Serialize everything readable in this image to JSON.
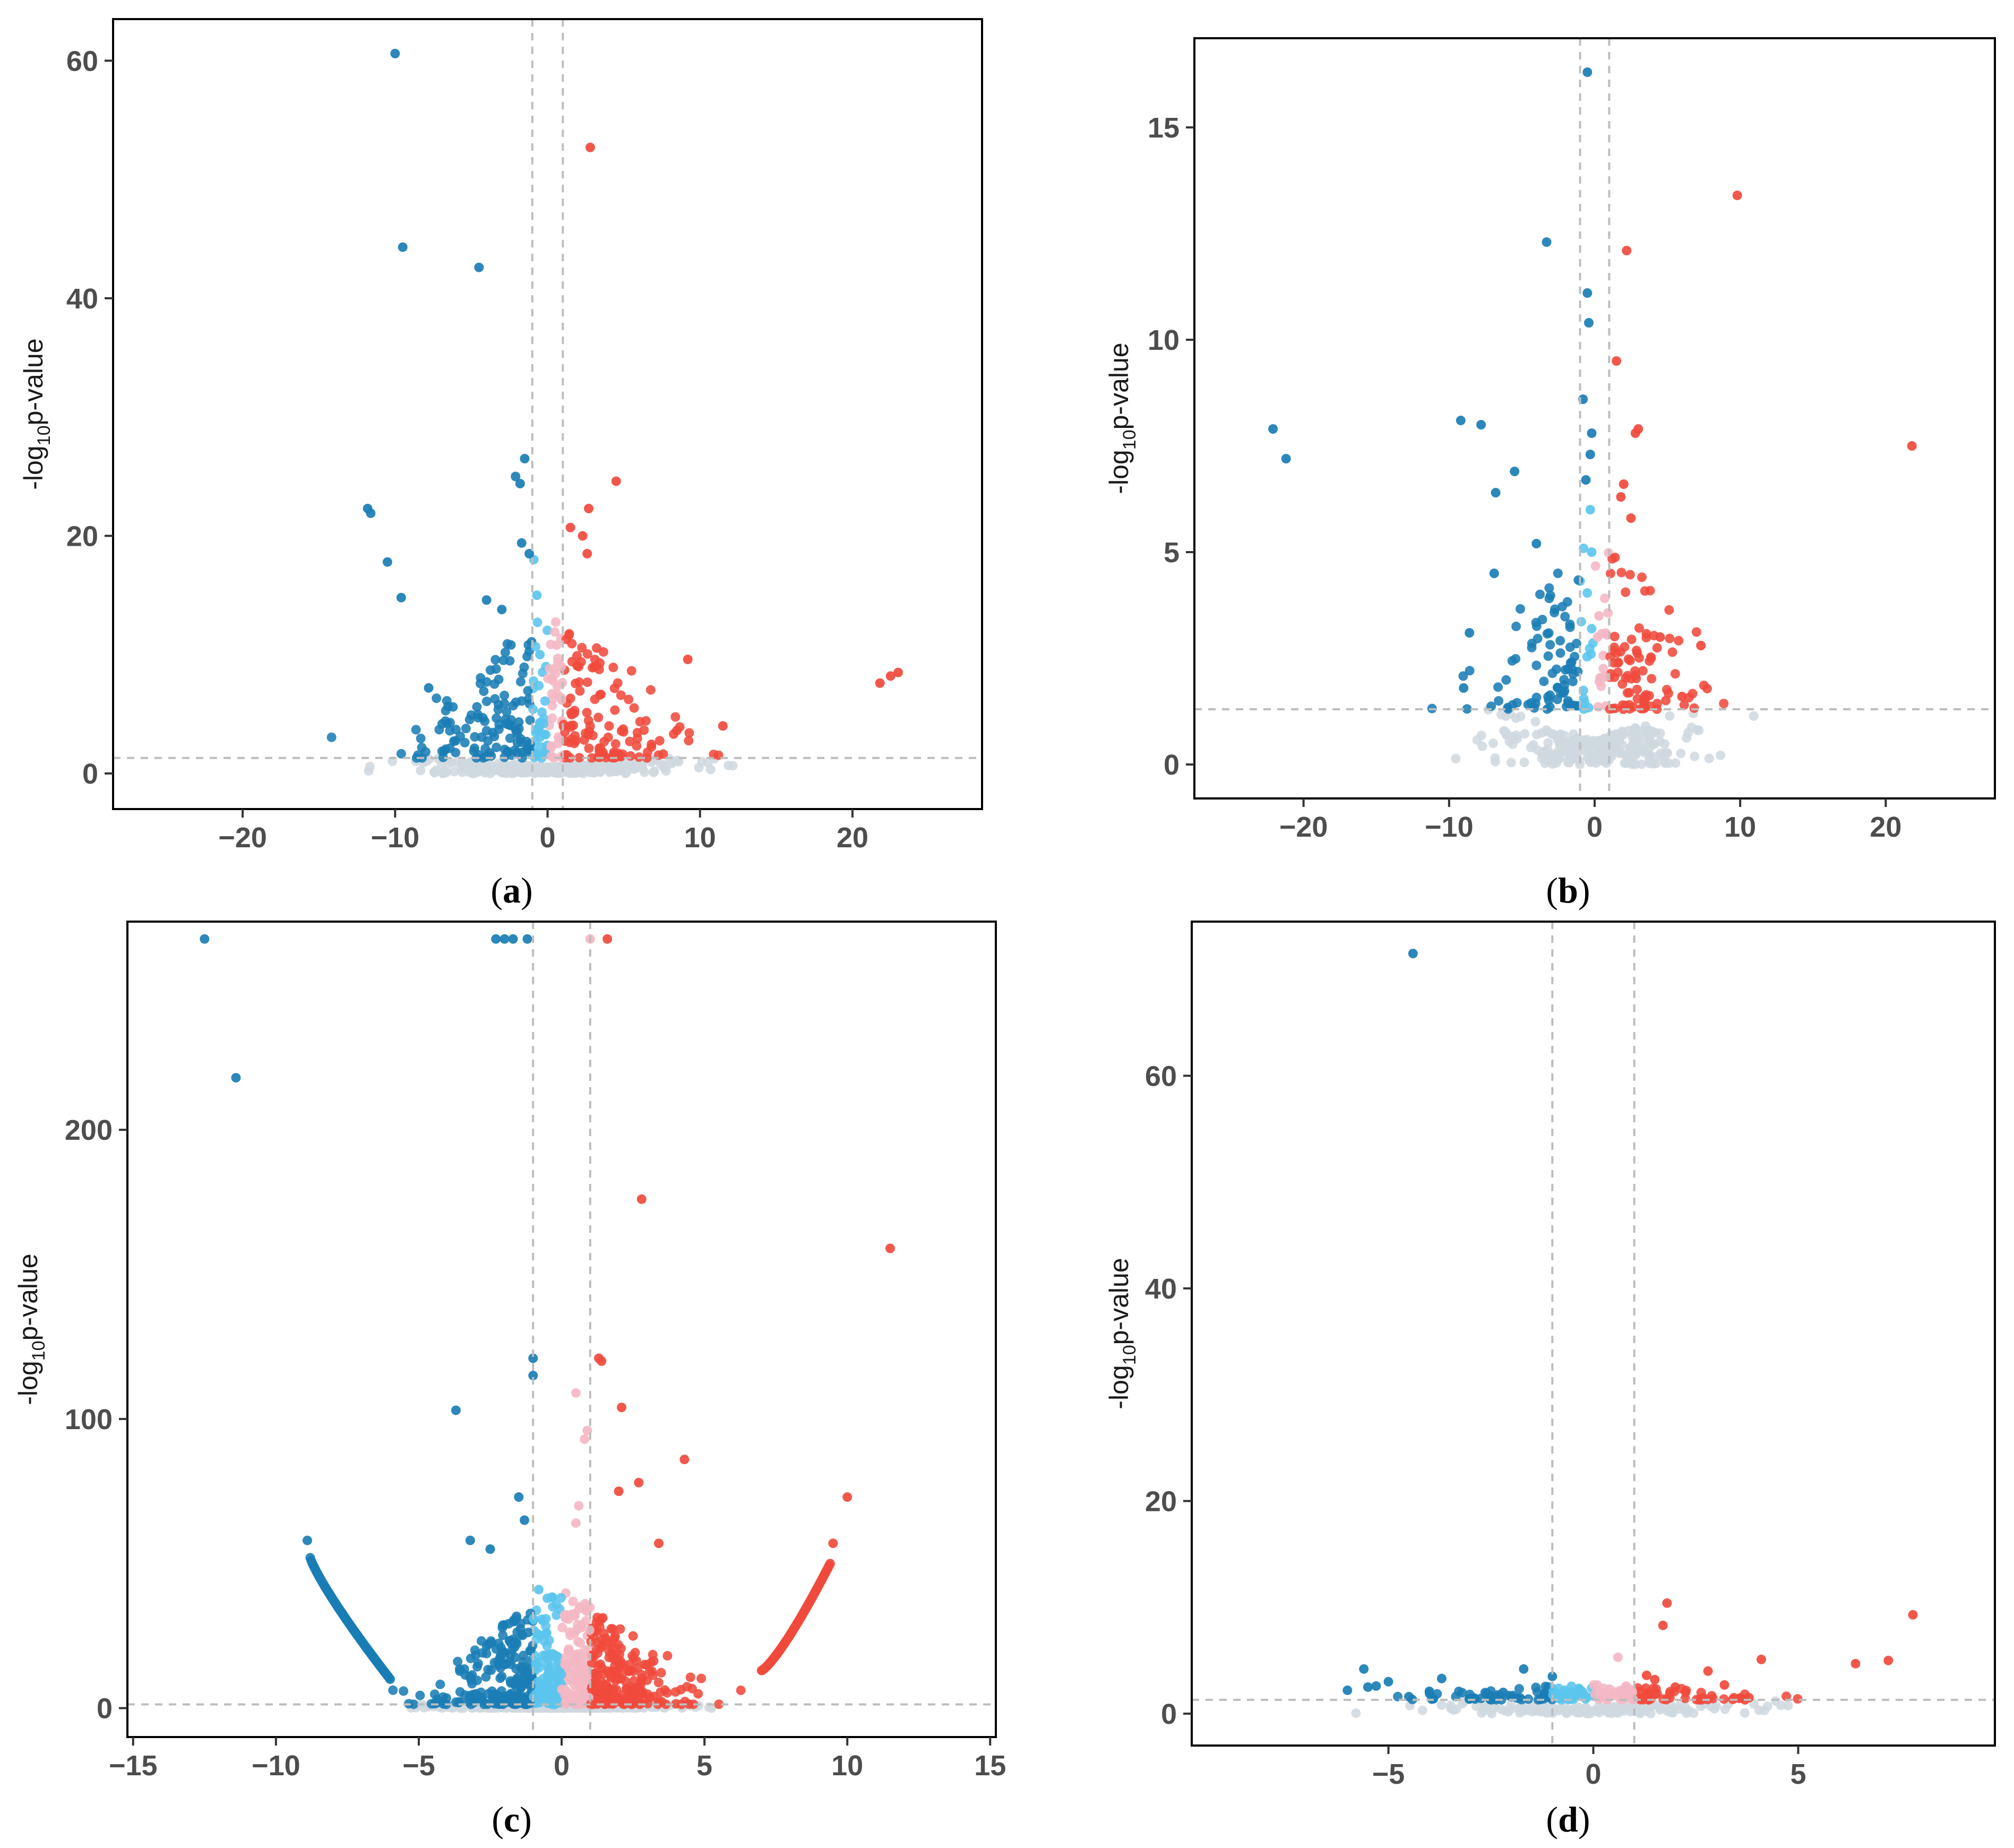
{
  "figure": {
    "colors": {
      "sig_down": "#1a7db5",
      "down": "#5bc5ee",
      "nonsig": "#cfd8df",
      "up": "#f4b7c4",
      "sig_up": "#f04a3c",
      "threshold": "#bdbdbd",
      "frame": "#000000"
    }
  },
  "chart_data": [
    {
      "id": "a",
      "type": "scatter",
      "label": "a",
      "ylabel_main": "-log",
      "ylabel_sub": "10",
      "ylabel_rest": "p-value",
      "xlabel": "",
      "xlim": [
        -28.5,
        28.5
      ],
      "ylim": [
        -3,
        63.5
      ],
      "xticks": [
        -20,
        -10,
        0,
        10,
        20
      ],
      "yticks": [
        0,
        20,
        40,
        60
      ],
      "fc_threshold": [
        -1,
        1
      ],
      "p_threshold": 1.3,
      "cloud": {
        "xspread": 9,
        "nonsig_ymax": 1.3,
        "sig_ymax": 12,
        "count": 700
      },
      "highlights": {
        "sig_down": [
          [
            -10,
            60.6
          ],
          [
            -9.5,
            44.3
          ],
          [
            -4.5,
            42.6
          ],
          [
            -11.8,
            22.3
          ],
          [
            -11.6,
            21.9
          ],
          [
            -10.5,
            17.8
          ],
          [
            -9.6,
            14.8
          ],
          [
            -1.5,
            26.5
          ],
          [
            -2.1,
            25.0
          ],
          [
            -1.8,
            24.4
          ],
          [
            -1.7,
            19.4
          ],
          [
            -1.2,
            18.5
          ],
          [
            -7.8,
            7.2
          ],
          [
            -4.0,
            14.6
          ],
          [
            -3.0,
            13.8
          ]
        ],
        "sig_up": [
          [
            2.8,
            52.7
          ],
          [
            4.5,
            24.6
          ],
          [
            2.7,
            22.3
          ],
          [
            1.5,
            20.7
          ],
          [
            2.3,
            20.0
          ],
          [
            2.6,
            18.5
          ],
          [
            9.2,
            9.6
          ],
          [
            11.5,
            4.0
          ],
          [
            21.8,
            7.6
          ],
          [
            22.5,
            8.2
          ],
          [
            23.0,
            8.5
          ]
        ],
        "down": [
          [
            -0.9,
            18.0
          ],
          [
            -0.7,
            15.0
          ],
          [
            -0.5,
            10.0
          ]
        ],
        "up": [
          [
            0.6,
            10.8
          ],
          [
            0.9,
            9.0
          ]
        ]
      }
    },
    {
      "id": "b",
      "type": "scatter",
      "label": "b",
      "ylabel_main": "-log",
      "ylabel_sub": "10",
      "ylabel_rest": "p-value",
      "xlabel": "",
      "xlim": [
        -27.5,
        27.5
      ],
      "ylim": [
        -0.8,
        17.1
      ],
      "xticks": [
        -20,
        -10,
        0,
        10,
        20
      ],
      "yticks": [
        0,
        5,
        10,
        15
      ],
      "fc_threshold": [
        -1,
        1
      ],
      "p_threshold": 1.3,
      "cloud": {
        "xspread": 8,
        "nonsig_ymax": 1.3,
        "sig_ymax": 4.2,
        "count": 450
      },
      "highlights": {
        "sig_down": [
          [
            -0.5,
            16.3
          ],
          [
            -3.3,
            12.3
          ],
          [
            -0.5,
            11.1
          ],
          [
            -0.4,
            10.4
          ],
          [
            -0.8,
            8.6
          ],
          [
            -22.1,
            7.9
          ],
          [
            -21.2,
            7.2
          ],
          [
            -9.2,
            8.1
          ],
          [
            -7.8,
            8.0
          ],
          [
            -5.5,
            6.9
          ],
          [
            -6.8,
            6.4
          ],
          [
            -6.9,
            4.5
          ],
          [
            -4.0,
            5.2
          ],
          [
            -0.2,
            7.8
          ],
          [
            -0.3,
            7.3
          ],
          [
            -0.6,
            6.7
          ],
          [
            -8.6,
            3.1
          ],
          [
            -9.0,
            1.8
          ]
        ],
        "sig_up": [
          [
            9.8,
            13.4
          ],
          [
            2.2,
            12.1
          ],
          [
            1.5,
            9.5
          ],
          [
            3.0,
            7.9
          ],
          [
            2.8,
            7.8
          ],
          [
            21.8,
            7.5
          ],
          [
            2.0,
            6.6
          ],
          [
            1.8,
            6.3
          ],
          [
            2.5,
            5.8
          ],
          [
            4.5,
            3.0
          ],
          [
            7.3,
            2.8
          ],
          [
            6.0,
            1.6
          ]
        ],
        "down": [
          [
            -0.3,
            6.0
          ],
          [
            -0.2,
            5.0
          ]
        ],
        "up": [
          [
            0.3,
            3.5
          ],
          [
            0.2,
            3.0
          ]
        ]
      }
    },
    {
      "id": "c",
      "type": "scatter",
      "label": "c",
      "ylabel_main": "-log",
      "ylabel_sub": "10",
      "ylabel_rest": "p-value",
      "xlabel": "",
      "xlim": [
        -15.2,
        15.2
      ],
      "ylim": [
        -10,
        272
      ],
      "xticks": [
        -15,
        -10,
        -5,
        0,
        5,
        10,
        15
      ],
      "yticks": [
        0,
        100,
        200
      ],
      "fc_threshold": [
        -1,
        1
      ],
      "p_threshold": 1.3,
      "cloud": {
        "xspread": 4.2,
        "nonsig_ymax": 1.3,
        "sig_ymax": 40,
        "count": 1400
      },
      "arcs": [
        {
          "group": "sig_down",
          "from": [
            -8.8,
            52
          ],
          "to": [
            -6.0,
            10
          ],
          "count": 80
        },
        {
          "group": "sig_up",
          "from": [
            7.0,
            13
          ],
          "to": [
            9.4,
            50
          ],
          "count": 80
        }
      ],
      "highlights": {
        "sig_down": [
          [
            -12.5,
            266
          ],
          [
            -11.4,
            218
          ],
          [
            -2.3,
            266
          ],
          [
            -2.0,
            266
          ],
          [
            -1.7,
            266
          ],
          [
            -1.2,
            266
          ],
          [
            -1.0,
            121
          ],
          [
            -1.0,
            115
          ],
          [
            -3.7,
            103
          ],
          [
            -1.5,
            73
          ],
          [
            -1.3,
            65
          ],
          [
            -8.9,
            58
          ],
          [
            -2.5,
            55
          ],
          [
            -3.2,
            58
          ]
        ],
        "sig_up": [
          [
            1.6,
            266
          ],
          [
            2.8,
            176
          ],
          [
            11.5,
            159
          ],
          [
            1.3,
            121
          ],
          [
            1.4,
            120
          ],
          [
            2.1,
            104
          ],
          [
            4.3,
            86
          ],
          [
            2.7,
            78
          ],
          [
            2.0,
            75
          ],
          [
            10.0,
            73
          ],
          [
            9.5,
            57
          ],
          [
            3.4,
            57
          ]
        ],
        "down": [
          [
            -0.8,
            41
          ],
          [
            -0.5,
            38
          ]
        ],
        "up": [
          [
            1.0,
            266
          ],
          [
            0.5,
            109
          ],
          [
            0.9,
            96
          ],
          [
            0.8,
            93
          ],
          [
            0.6,
            70
          ],
          [
            0.5,
            64
          ]
        ]
      }
    },
    {
      "id": "d",
      "type": "scatter",
      "label": "d",
      "ylabel_main": "-log",
      "ylabel_sub": "10",
      "ylabel_rest": "p-value",
      "xlabel": "",
      "xlim": [
        -9.8,
        9.8
      ],
      "ylim": [
        -3,
        74.5
      ],
      "xticks": [
        -5,
        0,
        5
      ],
      "yticks": [
        0,
        20,
        40,
        60
      ],
      "fc_threshold": [
        -1,
        1
      ],
      "p_threshold": 1.3,
      "cloud": {
        "xspread": 4.5,
        "nonsig_ymax": 1.3,
        "sig_ymax": 1.5,
        "count": 320
      },
      "highlights": {
        "sig_down": [
          [
            -4.4,
            71.5
          ],
          [
            -6.0,
            2.2
          ],
          [
            -5.6,
            4.2
          ],
          [
            -5.5,
            2.5
          ],
          [
            -5.3,
            2.6
          ],
          [
            -5.0,
            3.0
          ],
          [
            -4.5,
            1.6
          ],
          [
            -4.0,
            2.1
          ],
          [
            -3.7,
            3.3
          ],
          [
            -2.6,
            1.9
          ],
          [
            -2.2,
            2.0
          ],
          [
            -2.0,
            1.6
          ],
          [
            -1.7,
            4.2
          ],
          [
            -1.0,
            3.5
          ],
          [
            -3.9,
            1.4
          ]
        ],
        "sig_up": [
          [
            1.8,
            10.4
          ],
          [
            1.7,
            8.3
          ],
          [
            7.8,
            9.3
          ],
          [
            4.1,
            5.1
          ],
          [
            6.4,
            4.7
          ],
          [
            7.2,
            5.0
          ],
          [
            2.8,
            4.0
          ],
          [
            3.2,
            2.7
          ],
          [
            1.3,
            3.6
          ],
          [
            1.5,
            3.2
          ],
          [
            2.0,
            2.5
          ],
          [
            1.3,
            1.8
          ],
          [
            3.8,
            1.5
          ],
          [
            3.7,
            1.3
          ]
        ],
        "down": [
          [
            -0.9,
            1.9
          ],
          [
            -0.7,
            2.2
          ],
          [
            -0.5,
            1.6
          ]
        ],
        "up": [
          [
            0.6,
            5.3
          ],
          [
            0.4,
            2.3
          ],
          [
            0.8,
            2.6
          ],
          [
            0.3,
            1.9
          ]
        ]
      }
    }
  ]
}
